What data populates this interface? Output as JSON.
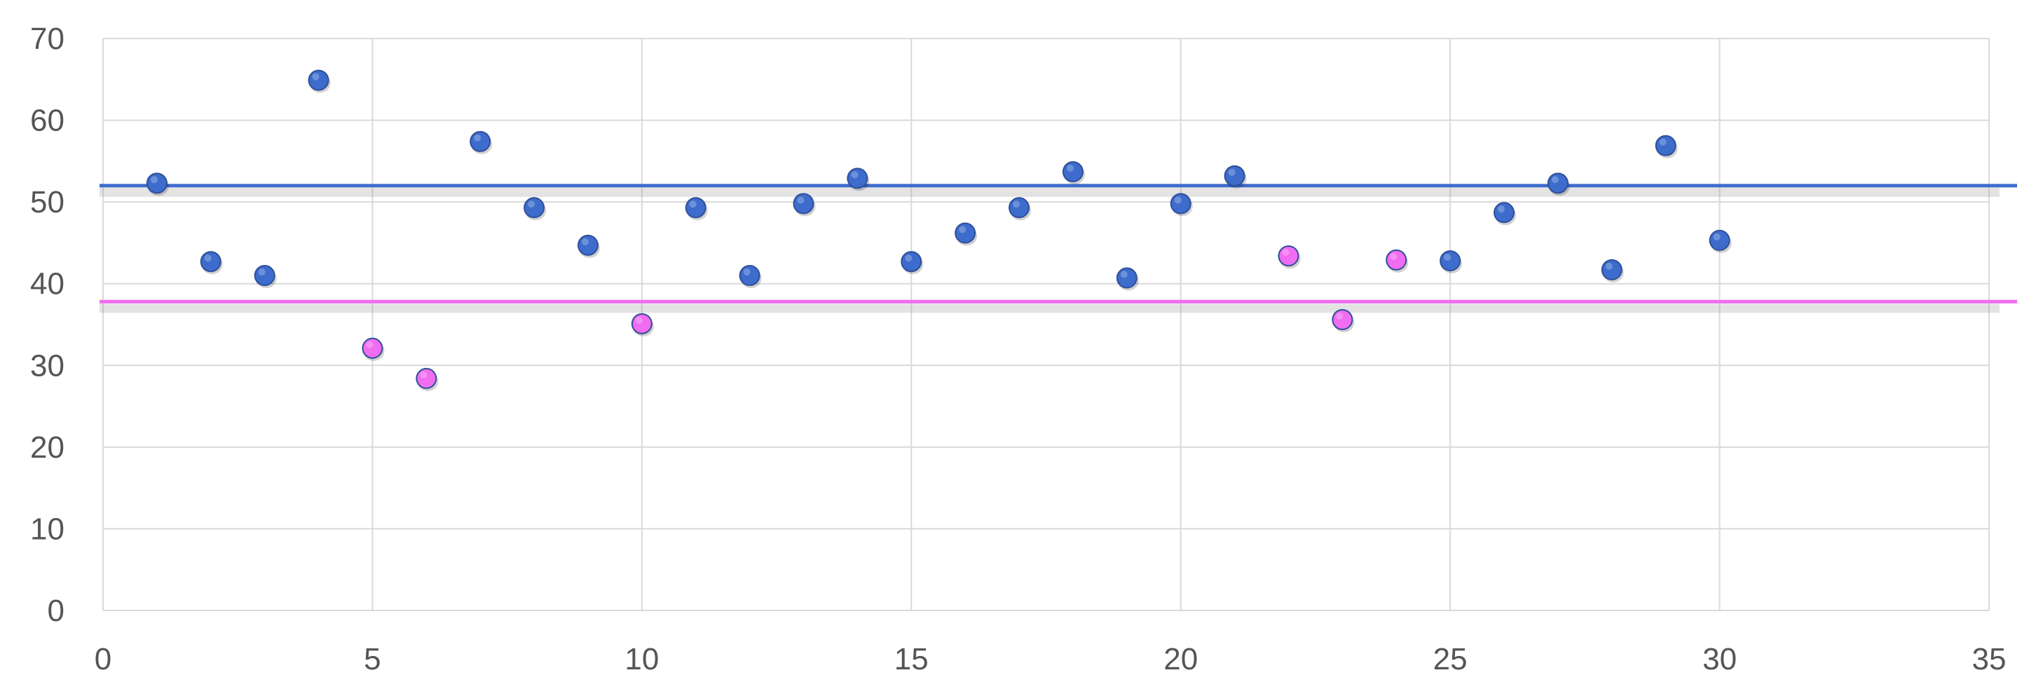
{
  "chart_data": {
    "type": "scatter",
    "title": "",
    "xlabel": "",
    "ylabel": "",
    "xlim": [
      0,
      35
    ],
    "ylim": [
      0,
      70
    ],
    "x_ticks": [
      0,
      5,
      10,
      15,
      20,
      25,
      30,
      35
    ],
    "y_ticks": [
      0,
      10,
      20,
      30,
      40,
      50,
      60,
      70
    ],
    "x_tick_labels": [
      "0",
      "5",
      "10",
      "15",
      "20",
      "25",
      "30",
      "35"
    ],
    "y_tick_labels": [
      "0",
      "10",
      "20",
      "30",
      "40",
      "50",
      "60",
      "70"
    ],
    "grid": true,
    "legend": "none",
    "series": [
      {
        "color": "#3d6ccc",
        "points": [
          {
            "x": 1,
            "y": 52.3
          },
          {
            "x": 2,
            "y": 42.7
          },
          {
            "x": 3,
            "y": 41.0
          },
          {
            "x": 4,
            "y": 64.9
          },
          {
            "x": 7,
            "y": 57.4
          },
          {
            "x": 8,
            "y": 49.3
          },
          {
            "x": 9,
            "y": 44.7
          },
          {
            "x": 11,
            "y": 49.3
          },
          {
            "x": 12,
            "y": 41.0
          },
          {
            "x": 13,
            "y": 49.8
          },
          {
            "x": 14,
            "y": 52.9
          },
          {
            "x": 15,
            "y": 42.7
          },
          {
            "x": 16,
            "y": 46.2
          },
          {
            "x": 17,
            "y": 49.3
          },
          {
            "x": 18,
            "y": 53.7
          },
          {
            "x": 19,
            "y": 40.7
          },
          {
            "x": 20,
            "y": 49.8
          },
          {
            "x": 21,
            "y": 53.2
          },
          {
            "x": 25,
            "y": 42.8
          },
          {
            "x": 26,
            "y": 48.7
          },
          {
            "x": 27,
            "y": 52.3
          },
          {
            "x": 28,
            "y": 41.7
          },
          {
            "x": 29,
            "y": 56.9
          },
          {
            "x": 30,
            "y": 45.3
          }
        ]
      },
      {
        "color": "#f06cf0",
        "points": [
          {
            "x": 5,
            "y": 32.1
          },
          {
            "x": 6,
            "y": 28.4
          },
          {
            "x": 10,
            "y": 35.1
          },
          {
            "x": 22,
            "y": 43.4
          },
          {
            "x": 23,
            "y": 35.6
          },
          {
            "x": 24,
            "y": 42.9
          }
        ]
      }
    ],
    "reference_lines": [
      {
        "y": 52.0,
        "color": "#3d6ccc"
      },
      {
        "y": 37.8,
        "color": "#f06cf0"
      }
    ],
    "colors": {
      "grid": "#d9d9d9",
      "tick_text": "#555555",
      "marker_outline": "#2f4f99"
    }
  }
}
